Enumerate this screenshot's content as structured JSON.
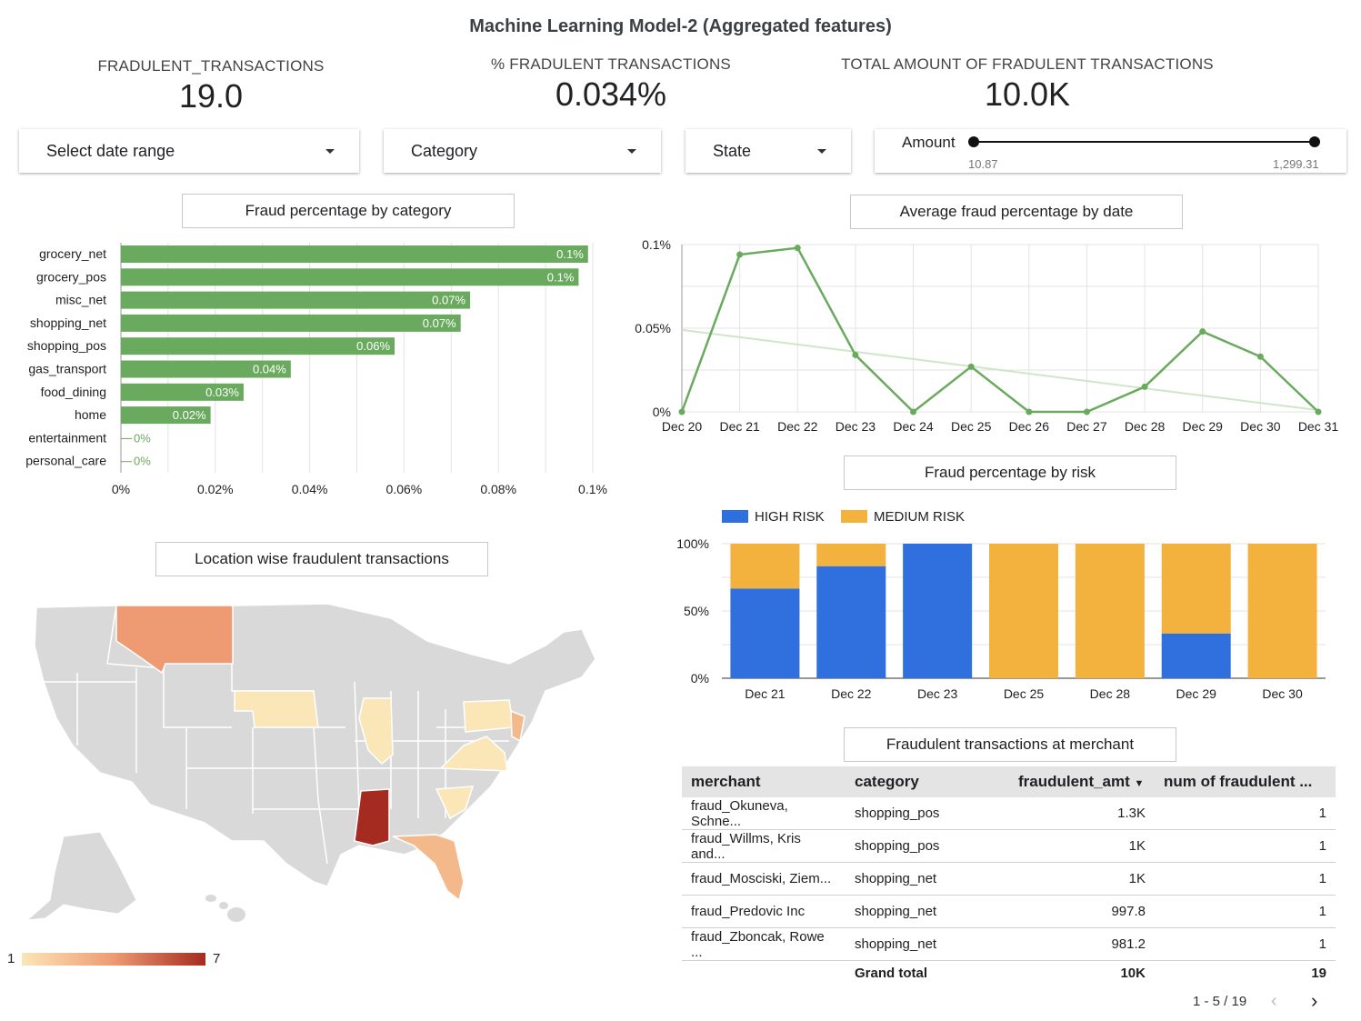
{
  "title": "Machine Learning Model-2 (Aggregated features)",
  "kpis": [
    {
      "label": "FRADULENT_TRANSACTIONS",
      "value": "19.0"
    },
    {
      "label": "% FRADULENT TRANSACTIONS",
      "value": "0.034%"
    },
    {
      "label": "TOTAL AMOUNT OF FRADULENT TRANSACTIONS",
      "value": "10.0K"
    }
  ],
  "controls": {
    "date_range": "Select date range",
    "category": "Category",
    "state": "State",
    "amount_label": "Amount",
    "amount_min": "10.87",
    "amount_max": "1,299.31"
  },
  "category_chart": {
    "title": "Fraud percentage by category",
    "bar_color": "#6aaa5e",
    "chart_data": {
      "type": "bar",
      "orientation": "horizontal",
      "categories": [
        "grocery_net",
        "grocery_pos",
        "misc_net",
        "shopping_net",
        "shopping_pos",
        "gas_transport",
        "food_dining",
        "home",
        "entertainment",
        "personal_care"
      ],
      "values": [
        0.099,
        0.097,
        0.074,
        0.072,
        0.058,
        0.036,
        0.026,
        0.019,
        0,
        0
      ],
      "value_labels": [
        "0.1%",
        "0.1%",
        "0.07%",
        "0.07%",
        "0.06%",
        "0.04%",
        "0.03%",
        "0.02%",
        "0%",
        "0%"
      ],
      "xlim": [
        0,
        0.1
      ],
      "xticks": [
        "0%",
        "0.02%",
        "0.04%",
        "0.06%",
        "0.08%",
        "0.1%"
      ]
    }
  },
  "date_chart": {
    "title": "Average fraud percentage by date",
    "line_color": "#6aaa5e",
    "chart_data": {
      "type": "line",
      "x": [
        "Dec 20",
        "Dec 21",
        "Dec 22",
        "Dec 23",
        "Dec 24",
        "Dec 25",
        "Dec 26",
        "Dec 27",
        "Dec 28",
        "Dec 29",
        "Dec 30",
        "Dec 31"
      ],
      "values": [
        0,
        0.094,
        0.098,
        0.034,
        0,
        0.027,
        0,
        0,
        0.015,
        0.048,
        0.033,
        0
      ],
      "trendline": [
        0.049,
        0.001
      ],
      "ylim": [
        0,
        0.1
      ],
      "yticks": [
        "0%",
        "0.05%",
        "0.1%"
      ]
    }
  },
  "risk_chart": {
    "title": "Fraud percentage by risk",
    "colors": {
      "high": "#2f6fde",
      "medium": "#f3b23e"
    },
    "chart_data": {
      "type": "bar",
      "stacked": true,
      "categories": [
        "Dec 21",
        "Dec 22",
        "Dec 23",
        "Dec 25",
        "Dec 28",
        "Dec 29",
        "Dec 30"
      ],
      "series": [
        {
          "name": "HIGH RISK",
          "values": [
            66.7,
            83.3,
            100,
            0,
            0,
            33.3,
            0
          ]
        },
        {
          "name": "MEDIUM RISK",
          "values": [
            33.3,
            16.7,
            0,
            100,
            100,
            66.7,
            100
          ]
        }
      ],
      "ylim": [
        0,
        100
      ],
      "yticks": [
        "0%",
        "50%",
        "100%"
      ]
    }
  },
  "map": {
    "title": "Location wise fraudulent transactions",
    "legend_min": "1",
    "legend_max": "7",
    "colors": {
      "none": "#d9d9d9",
      "low": "#fbe6b7",
      "mid": "#f4b98a",
      "high": "#ee9a72",
      "max": "#a52a20"
    }
  },
  "merchant_table": {
    "title": "Fraudulent transactions at merchant",
    "columns": [
      "merchant",
      "category",
      "fraudulent_amt",
      "num of fraudulent ..."
    ],
    "rows": [
      {
        "merchant": "fraud_Okuneva, Schne...",
        "category": "shopping_pos",
        "amt": "1.3K",
        "num": "1"
      },
      {
        "merchant": "fraud_Willms, Kris and...",
        "category": "shopping_pos",
        "amt": "1K",
        "num": "1"
      },
      {
        "merchant": "fraud_Mosciski, Ziem...",
        "category": "shopping_net",
        "amt": "1K",
        "num": "1"
      },
      {
        "merchant": "fraud_Predovic Inc",
        "category": "shopping_net",
        "amt": "997.8",
        "num": "1"
      },
      {
        "merchant": "fraud_Zboncak, Rowe ...",
        "category": "shopping_net",
        "amt": "981.2",
        "num": "1"
      }
    ],
    "total_label": "Grand total",
    "total_amt": "10K",
    "total_num": "19",
    "pagination": "1 - 5 / 19"
  }
}
